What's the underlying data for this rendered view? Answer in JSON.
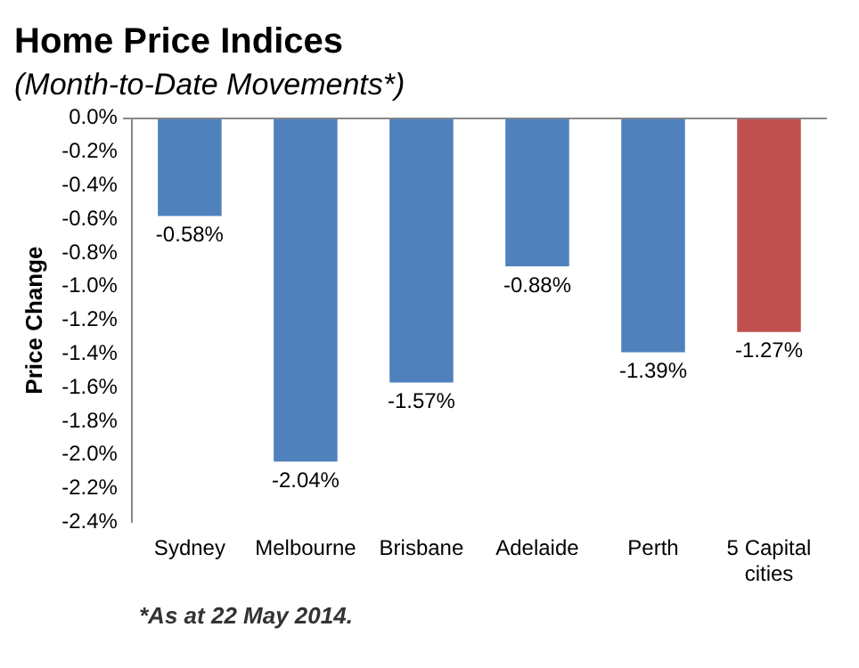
{
  "chart_data": {
    "type": "bar",
    "title": "Home Price Indices",
    "subtitle": "(Month-to-Date Movements*)",
    "ylabel": "Price Change",
    "categories": [
      "Sydney",
      "Melbourne",
      "Brisbane",
      "Adelaide",
      "Perth",
      "5 Capital cities"
    ],
    "values": [
      -0.58,
      -2.04,
      -1.57,
      -0.88,
      -1.39,
      -1.27
    ],
    "colors": [
      "#4f81bd",
      "#4f81bd",
      "#4f81bd",
      "#4f81bd",
      "#4f81bd",
      "#c0504d"
    ],
    "value_labels": [
      "-0.58%",
      "-2.04%",
      "-1.57%",
      "-0.88%",
      "-1.39%",
      "-1.27%"
    ],
    "ylim": [
      -2.4,
      0
    ],
    "yticks": [
      {
        "value": -2.4,
        "label": "-2.4%"
      },
      {
        "value": -2.2,
        "label": "-2.2%"
      },
      {
        "value": -2.0,
        "label": "-2.0%"
      },
      {
        "value": -1.8,
        "label": "-1.8%"
      },
      {
        "value": -1.6,
        "label": "-1.6%"
      },
      {
        "value": -1.4,
        "label": "-1.4%"
      },
      {
        "value": -1.2,
        "label": "-1.2%"
      },
      {
        "value": -1.0,
        "label": "-1.0%"
      },
      {
        "value": -0.8,
        "label": "-0.8%"
      },
      {
        "value": -0.6,
        "label": "-0.6%"
      },
      {
        "value": -0.4,
        "label": "-0.4%"
      },
      {
        "value": -0.2,
        "label": "-0.2%"
      },
      {
        "value": 0,
        "label": "0.0%"
      }
    ],
    "grid": false,
    "legend": false,
    "annotations": [
      "*As at 22 May 2014."
    ]
  }
}
